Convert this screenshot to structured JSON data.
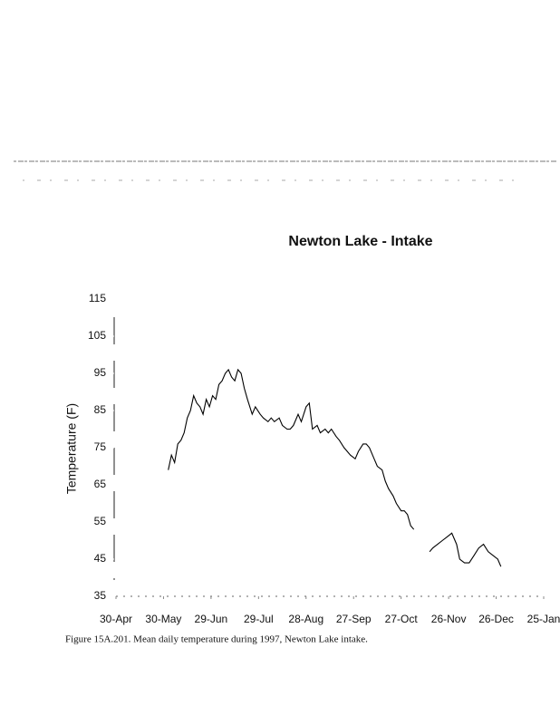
{
  "chart_data": {
    "type": "line",
    "title": "Newton Lake - Intake",
    "ylabel": "Temperature (F)",
    "caption": "Figure 15A.201. Mean daily temperature during 1997, Newton Lake intake.",
    "xlim": [
      120,
      390
    ],
    "ylim": [
      35,
      115
    ],
    "xticks": [
      {
        "value": 120,
        "label": "30-Apr"
      },
      {
        "value": 150,
        "label": "30-May"
      },
      {
        "value": 180,
        "label": "29-Jun"
      },
      {
        "value": 210,
        "label": "29-Jul"
      },
      {
        "value": 240,
        "label": "28-Aug"
      },
      {
        "value": 270,
        "label": "27-Sep"
      },
      {
        "value": 300,
        "label": "27-Oct"
      },
      {
        "value": 330,
        "label": "26-Nov"
      },
      {
        "value": 360,
        "label": "26-Dec"
      },
      {
        "value": 390,
        "label": "25-Jan"
      }
    ],
    "yticks": [
      35,
      45,
      55,
      65,
      75,
      85,
      95,
      105,
      115
    ],
    "series": [
      {
        "color": "#000000",
        "x": [
          153,
          155,
          157,
          159,
          161,
          163,
          165,
          167,
          169,
          171,
          173,
          175,
          177,
          179,
          181,
          183,
          185,
          187,
          189,
          191,
          193,
          195,
          197,
          199,
          201,
          203,
          206,
          208,
          211,
          213,
          216,
          218,
          220,
          223,
          225,
          228,
          230,
          232,
          235,
          237,
          240,
          242,
          244,
          247,
          249,
          252,
          254,
          256,
          259,
          261,
          264,
          266,
          268,
          271,
          273,
          276,
          278,
          280,
          283,
          285,
          288,
          290,
          292,
          295,
          297,
          300,
          302,
          304,
          306,
          308,
          314,
          318,
          320,
          323,
          326,
          329,
          332,
          335,
          337,
          340,
          343,
          346,
          349,
          352,
          355,
          358,
          361,
          363
        ],
        "values": [
          69,
          73,
          71,
          76,
          77,
          79,
          83,
          85,
          89,
          87,
          86,
          84,
          88,
          86,
          89,
          88,
          92,
          93,
          95,
          96,
          94,
          93,
          96,
          95,
          91,
          88,
          84,
          86,
          84,
          83,
          82,
          83,
          82,
          83,
          81,
          80,
          80,
          81,
          84,
          82,
          86,
          87,
          80,
          81,
          79,
          80,
          79,
          80,
          78,
          77,
          75,
          74,
          73,
          72,
          74,
          76,
          76,
          75,
          72,
          70,
          69,
          66,
          64,
          62,
          60,
          58,
          58,
          57,
          54,
          53,
          null,
          47,
          48,
          49,
          50,
          51,
          52,
          49,
          45,
          44,
          44,
          46,
          48,
          49,
          47,
          46,
          45,
          43
        ]
      }
    ]
  }
}
